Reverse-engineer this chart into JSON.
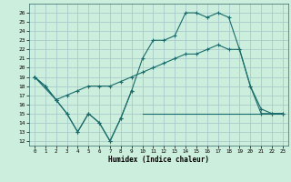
{
  "xlabel": "Humidex (Indice chaleur)",
  "bg_color": "#cceedd",
  "grid_color": "#aacccc",
  "line_color": "#1a6b6b",
  "xlim": [
    -0.5,
    23.5
  ],
  "ylim": [
    11.5,
    27.0
  ],
  "yticks": [
    12,
    13,
    14,
    15,
    16,
    17,
    18,
    19,
    20,
    21,
    22,
    23,
    24,
    25,
    26
  ],
  "xticks": [
    0,
    1,
    2,
    3,
    4,
    5,
    6,
    7,
    8,
    9,
    10,
    11,
    12,
    13,
    14,
    15,
    16,
    17,
    18,
    19,
    20,
    21,
    22,
    23
  ],
  "line1_x": [
    0,
    1,
    2,
    3,
    4,
    5,
    6,
    7,
    8,
    9
  ],
  "line1_y": [
    19,
    18,
    16.5,
    15,
    13,
    15,
    14,
    12,
    14.5,
    17.5
  ],
  "flat_x": [
    10,
    11,
    12,
    13,
    14,
    15,
    16,
    17,
    18,
    19,
    20,
    21,
    22,
    23
  ],
  "flat_y": [
    15,
    15,
    15,
    15,
    15,
    15,
    15,
    15,
    15,
    15,
    15,
    15,
    15,
    15
  ],
  "line2_x": [
    0,
    1,
    2,
    3,
    4,
    5,
    6,
    7,
    8,
    9,
    10,
    11,
    12,
    13,
    14,
    15,
    16,
    17,
    18,
    19,
    20,
    21,
    22,
    23
  ],
  "line2_y": [
    19,
    18,
    16.5,
    17,
    17.5,
    18,
    18,
    18,
    18.5,
    19,
    19.5,
    20,
    20.5,
    21,
    21.5,
    21.5,
    22,
    22.5,
    22.0,
    22.0,
    18.0,
    15,
    15,
    15
  ],
  "line3_x": [
    0,
    2,
    3,
    4,
    5,
    6,
    7,
    8,
    9,
    10,
    11,
    12,
    13,
    14,
    15,
    16,
    17,
    18,
    19,
    20,
    21,
    22,
    23
  ],
  "line3_y": [
    19,
    16.5,
    15,
    13,
    15,
    14,
    12,
    14.5,
    17.5,
    21,
    23,
    23,
    23.5,
    26,
    26,
    25.5,
    26,
    25.5,
    22,
    18,
    15.5,
    15,
    15
  ]
}
